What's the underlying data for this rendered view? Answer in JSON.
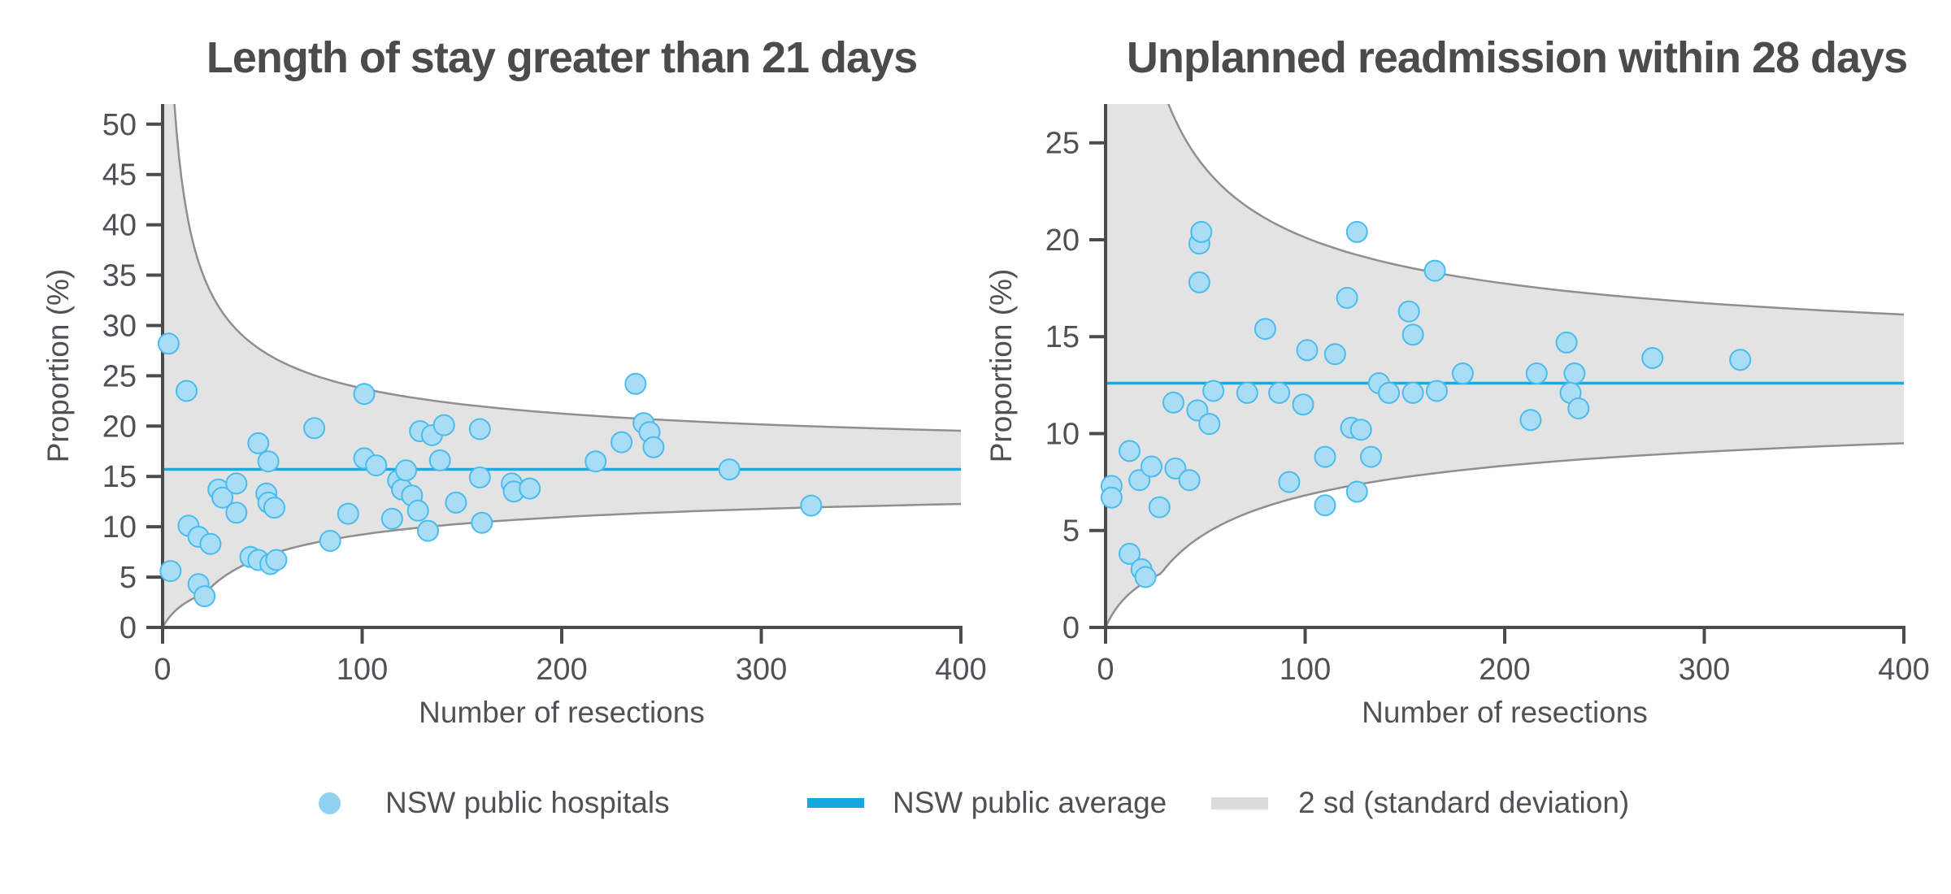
{
  "figure": {
    "background": "#ffffff"
  },
  "style": {
    "title_color": "#4a4b4d",
    "text_color": "#4f5154",
    "axis_color": "#4a4b4d",
    "tick_label_color": "#4f5154",
    "dot_fill": "#a9ddf5",
    "dot_stroke": "#4bbcee",
    "average_line_color": "#1ba9e1",
    "band_fill": "#e3e3e4",
    "band_stroke": "#8f8f90",
    "legend_dot_color": "#8fd2ef",
    "legend_line_color": "#18a8e0",
    "legend_band_color": "#dcdcdc"
  },
  "legend": {
    "items": [
      {
        "label": "NSW public hospitals",
        "type": "dot"
      },
      {
        "label": "NSW public average",
        "type": "line"
      },
      {
        "label": "2 sd (standard deviation)",
        "type": "band"
      }
    ]
  },
  "chart_data": [
    {
      "type": "scatter",
      "subtype": "funnel-plot",
      "title": "Length of stay greater than 21 days",
      "xlabel": "Number of resections",
      "ylabel": "Proportion (%)",
      "xlim": [
        0,
        400
      ],
      "ylim": [
        0,
        52
      ],
      "x_ticks": [
        0,
        100,
        200,
        300,
        400
      ],
      "y_ticks": [
        0,
        5,
        10,
        15,
        20,
        25,
        30,
        35,
        40,
        45,
        50
      ],
      "grid": false,
      "average_pct": 15.7,
      "band_note": "2 sd control limits around NSW public average",
      "points": [
        [
          3,
          28.2
        ],
        [
          12,
          23.5
        ],
        [
          4,
          5.6
        ],
        [
          13,
          10.1
        ],
        [
          18,
          9.0
        ],
        [
          24,
          8.3
        ],
        [
          18,
          4.3
        ],
        [
          21,
          3.1
        ],
        [
          28,
          13.7
        ],
        [
          30,
          12.9
        ],
        [
          37,
          14.3
        ],
        [
          37,
          11.4
        ],
        [
          44,
          7.0
        ],
        [
          48,
          6.7
        ],
        [
          48,
          18.3
        ],
        [
          52,
          13.3
        ],
        [
          53,
          12.4
        ],
        [
          54,
          6.3
        ],
        [
          57,
          6.7
        ],
        [
          53,
          16.5
        ],
        [
          56,
          11.9
        ],
        [
          76,
          19.8
        ],
        [
          84,
          8.6
        ],
        [
          93,
          11.3
        ],
        [
          101,
          23.2
        ],
        [
          101,
          16.8
        ],
        [
          107,
          16.1
        ],
        [
          115,
          10.8
        ],
        [
          118,
          14.6
        ],
        [
          120,
          13.7
        ],
        [
          122,
          15.6
        ],
        [
          125,
          13.1
        ],
        [
          128,
          11.6
        ],
        [
          129,
          19.5
        ],
        [
          133,
          9.6
        ],
        [
          135,
          19.1
        ],
        [
          139,
          16.6
        ],
        [
          141,
          20.1
        ],
        [
          147,
          12.4
        ],
        [
          159,
          19.7
        ],
        [
          159,
          14.9
        ],
        [
          160,
          10.4
        ],
        [
          175,
          14.3
        ],
        [
          176,
          13.5
        ],
        [
          184,
          13.8
        ],
        [
          217,
          16.5
        ],
        [
          230,
          18.4
        ],
        [
          237,
          24.2
        ],
        [
          241,
          20.3
        ],
        [
          244,
          19.4
        ],
        [
          246,
          17.9
        ],
        [
          284,
          15.7
        ],
        [
          325,
          12.1
        ]
      ]
    },
    {
      "type": "scatter",
      "subtype": "funnel-plot",
      "title": "Unplanned readmission within 28 days",
      "xlabel": "Number of resections",
      "ylabel": "Proportion (%)",
      "xlim": [
        0,
        400
      ],
      "ylim": [
        0,
        27
      ],
      "x_ticks": [
        0,
        100,
        200,
        300,
        400
      ],
      "y_ticks": [
        0,
        5,
        10,
        15,
        20,
        25
      ],
      "grid": false,
      "average_pct": 12.6,
      "band_note": "2 sd control limits around NSW public average",
      "points": [
        [
          3,
          7.3
        ],
        [
          3,
          6.7
        ],
        [
          12,
          9.1
        ],
        [
          12,
          3.8
        ],
        [
          17,
          7.6
        ],
        [
          18,
          3.0
        ],
        [
          20,
          2.6
        ],
        [
          23,
          8.3
        ],
        [
          27,
          6.2
        ],
        [
          34,
          11.6
        ],
        [
          35,
          8.2
        ],
        [
          42,
          7.6
        ],
        [
          46,
          11.2
        ],
        [
          47,
          19.8
        ],
        [
          48,
          20.4
        ],
        [
          47,
          17.8
        ],
        [
          52,
          10.5
        ],
        [
          54,
          12.2
        ],
        [
          71,
          12.1
        ],
        [
          80,
          15.4
        ],
        [
          87,
          12.1
        ],
        [
          92,
          7.5
        ],
        [
          99,
          11.5
        ],
        [
          101,
          14.3
        ],
        [
          110,
          8.8
        ],
        [
          110,
          6.3
        ],
        [
          115,
          14.1
        ],
        [
          121,
          17.0
        ],
        [
          123,
          10.3
        ],
        [
          126,
          7.0
        ],
        [
          126,
          20.4
        ],
        [
          128,
          10.2
        ],
        [
          133,
          8.8
        ],
        [
          137,
          12.6
        ],
        [
          142,
          12.1
        ],
        [
          152,
          16.3
        ],
        [
          154,
          15.1
        ],
        [
          154,
          12.1
        ],
        [
          165,
          18.4
        ],
        [
          166,
          12.2
        ],
        [
          179,
          13.1
        ],
        [
          213,
          10.7
        ],
        [
          216,
          13.1
        ],
        [
          231,
          14.7
        ],
        [
          235,
          13.1
        ],
        [
          233,
          12.1
        ],
        [
          237,
          11.3
        ],
        [
          274,
          13.9
        ],
        [
          318,
          13.8
        ]
      ]
    }
  ]
}
